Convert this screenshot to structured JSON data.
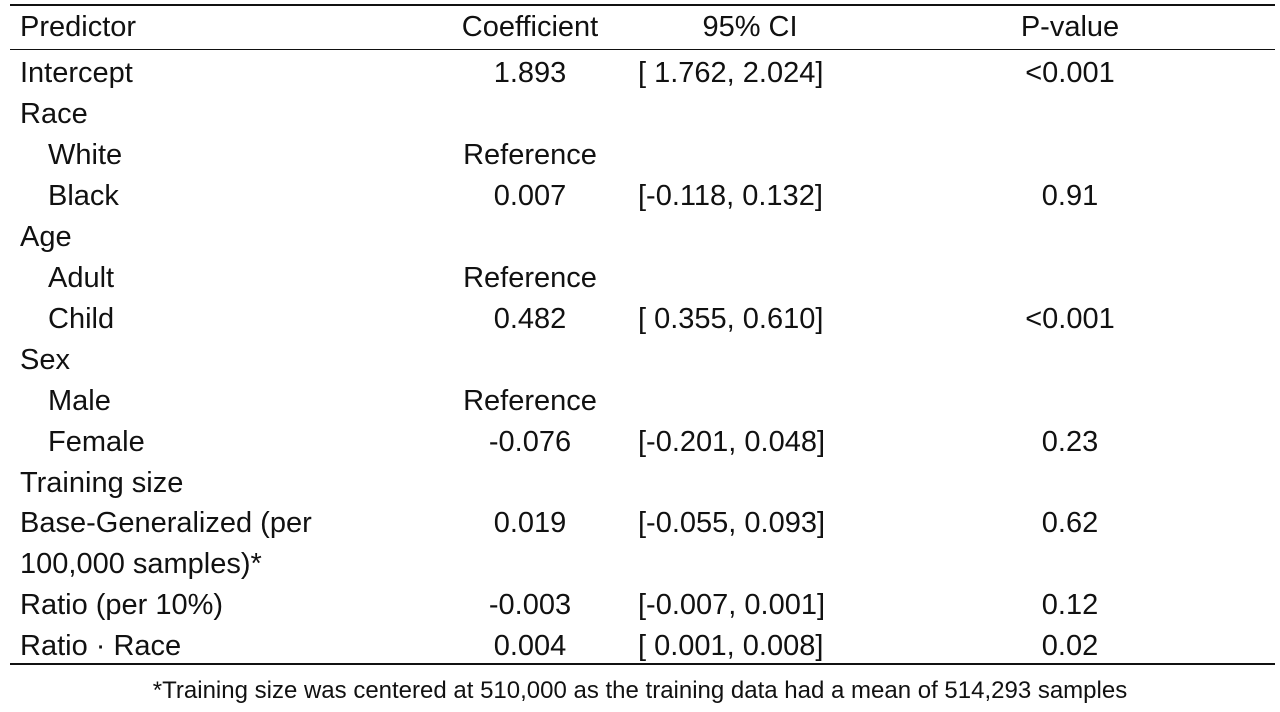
{
  "table": {
    "headers": {
      "predictor": "Predictor",
      "coefficient": "Coefficient",
      "ci": "95% CI",
      "pvalue": "P-value"
    },
    "rows": [
      {
        "predictor": "Intercept",
        "indent": false,
        "coefficient": "1.893",
        "ci": "[ 1.762, 2.024]",
        "pvalue": "<0.001"
      },
      {
        "predictor": "Race",
        "indent": false,
        "coefficient": "",
        "ci": "",
        "pvalue": ""
      },
      {
        "predictor": "White",
        "indent": true,
        "coefficient": "Reference",
        "ci": "",
        "pvalue": ""
      },
      {
        "predictor": "Black",
        "indent": true,
        "coefficient": "0.007",
        "ci": "[-0.118, 0.132]",
        "pvalue": "0.91"
      },
      {
        "predictor": "Age",
        "indent": false,
        "coefficient": "",
        "ci": "",
        "pvalue": ""
      },
      {
        "predictor": "Adult",
        "indent": true,
        "coefficient": "Reference",
        "ci": "",
        "pvalue": ""
      },
      {
        "predictor": "Child",
        "indent": true,
        "coefficient": "0.482",
        "ci": "[ 0.355, 0.610]",
        "pvalue": "<0.001"
      },
      {
        "predictor": "Sex",
        "indent": false,
        "coefficient": "",
        "ci": "",
        "pvalue": ""
      },
      {
        "predictor": "Male",
        "indent": true,
        "coefficient": "Reference",
        "ci": "",
        "pvalue": ""
      },
      {
        "predictor": "Female",
        "indent": true,
        "coefficient": "-0.076",
        "ci": "[-0.201, 0.048]",
        "pvalue": "0.23"
      },
      {
        "predictor": "Training size",
        "indent": false,
        "coefficient": "",
        "ci": "",
        "pvalue": ""
      },
      {
        "predictor": "Base-Generalized (per",
        "indent": false,
        "coefficient": "0.019",
        "ci": "[-0.055, 0.093]",
        "pvalue": "0.62"
      },
      {
        "predictor": "100,000 samples)*",
        "indent": false,
        "coefficient": "",
        "ci": "",
        "pvalue": ""
      },
      {
        "predictor": "Ratio (per 10%)",
        "indent": false,
        "coefficient": "-0.003",
        "ci": "[-0.007, 0.001]",
        "pvalue": "0.12"
      },
      {
        "predictor": "Ratio · Race",
        "indent": false,
        "coefficient": "0.004",
        "ci": "[ 0.001, 0.008]",
        "pvalue": "0.02"
      }
    ]
  },
  "footnote": "*Training size was centered at 510,000 as the training data had a mean of 514,293 samples"
}
